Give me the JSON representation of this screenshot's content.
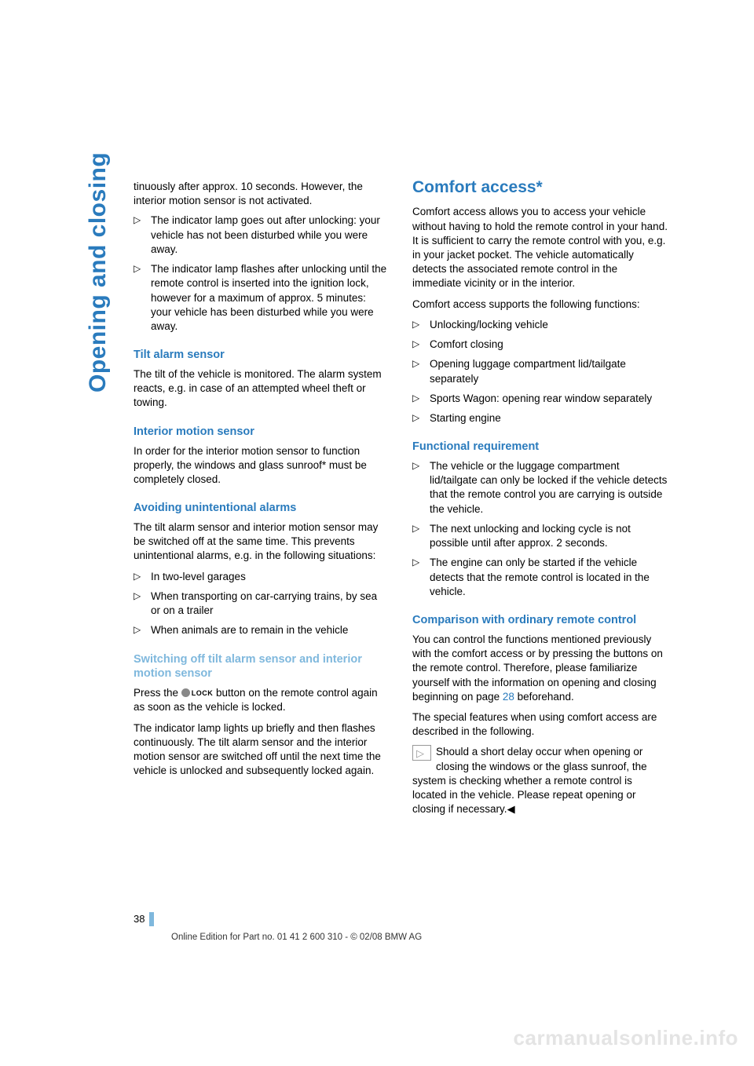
{
  "sideTab": "Opening and closing",
  "left": {
    "continuedList": [
      "tinuously after approx. 10 seconds. However, the interior motion sensor is not activated.",
      "The indicator lamp goes out after unlocking: your vehicle has not been disturbed while you were away.",
      "The indicator lamp flashes after unlocking until the remote control is inserted into the ignition lock, however for a maximum of approx. 5 minutes: your vehicle has been disturbed while you were away."
    ],
    "tilt": {
      "heading": "Tilt alarm sensor",
      "body": "The tilt of the vehicle is monitored. The alarm system reacts, e.g. in case of an attempted wheel theft or towing."
    },
    "interior": {
      "heading": "Interior motion sensor",
      "body1": "In order for the interior motion sensor to function properly, the windows and glass sunroof",
      "body2": " must be completely closed."
    },
    "avoid": {
      "heading": "Avoiding unintentional alarms",
      "intro": "The tilt alarm sensor and interior motion sensor may be switched off at the same time. This prevents unintentional alarms, e.g. in the following situations:",
      "items": [
        "In two-level garages",
        "When transporting on car-carrying trains, by sea or on a trailer",
        "When animals are to remain in the vehicle"
      ]
    },
    "switchOff": {
      "heading": "Switching off tilt alarm sensor and interior motion sensor",
      "p1a": "Press the ",
      "lockLabel": "LOCK",
      "p1b": " button on the remote control again as soon as the vehicle is locked.",
      "p2": "The indicator lamp lights up briefly and then flashes continuously. The tilt alarm sensor and the interior motion sensor are switched off until the next time the vehicle is unlocked and subsequently locked again."
    }
  },
  "right": {
    "title": "Comfort access*",
    "intro": "Comfort access allows you to access your vehicle without having to hold the remote control in your hand. It is sufficient to carry the remote control with you, e.g. in your jacket pocket. The vehicle automatically detects the associated remote control in the immediate vicinity or in the interior.",
    "supportsIntro": "Comfort access supports the following functions:",
    "supports": [
      "Unlocking/locking vehicle",
      "Comfort closing",
      "Opening luggage compartment lid/tailgate separately",
      "Sports Wagon: opening rear window separately",
      "Starting engine"
    ],
    "funcReq": {
      "heading": "Functional requirement",
      "items": [
        "The vehicle or the luggage compartment lid/tailgate can only be locked if the vehicle detects that the remote control you are carrying is outside the vehicle.",
        "The next unlocking and locking cycle is not possible until after approx. 2 seconds.",
        "The engine can only be started if the vehicle detects that the remote control is located in the vehicle."
      ]
    },
    "compare": {
      "heading": "Comparison with ordinary remote control",
      "p1a": "You can control the functions mentioned previously with the comfort access or by pressing the buttons on the remote control. Therefore, please familiarize yourself with the information on opening and closing beginning on page ",
      "pageRef": "28",
      "p1b": " beforehand.",
      "p2": "The special features when using comfort access are described in the following.",
      "note": "Should a short delay occur when opening or closing the windows or the glass sunroof, the system is checking whether a remote control is located in the vehicle. Please repeat opening or closing if necessary."
    }
  },
  "footer": {
    "pageNum": "38",
    "line": "Online Edition for Part no. 01 41 2 600 310 - © 02/08 BMW AG"
  },
  "watermark": "carmanualsonline.info"
}
